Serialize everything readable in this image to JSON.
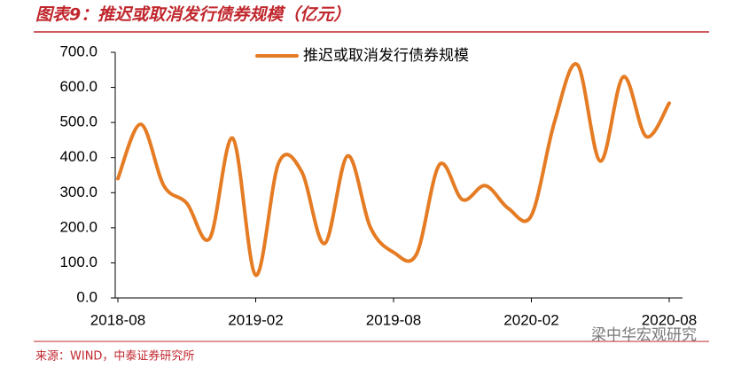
{
  "chart_data": {
    "type": "line",
    "title": "图表9：推迟或取消发行债券规模（亿元）",
    "source": "来源：WIND，中泰证券研究所",
    "watermark": "梁中华宏观研究",
    "categories": [
      "2018-08",
      null,
      null,
      null,
      null,
      null,
      "2019-02",
      null,
      null,
      null,
      null,
      null,
      "2019-08",
      null,
      null,
      null,
      null,
      null,
      "2020-02",
      null,
      null,
      null,
      null,
      null,
      "2020-08"
    ],
    "series": [
      {
        "name": "推迟或取消发行债券规模",
        "color": "#e57c24",
        "values": [
          340,
          495,
          320,
          270,
          170,
          455,
          65,
          385,
          360,
          155,
          405,
          200,
          130,
          125,
          380,
          280,
          320,
          255,
          235,
          500,
          665,
          390,
          630,
          460,
          555
        ]
      }
    ],
    "ylim": [
      0,
      700
    ],
    "yticks": [
      {
        "value": 0,
        "label": "0.0"
      },
      {
        "value": 100,
        "label": "100.0"
      },
      {
        "value": 200,
        "label": "200.0"
      },
      {
        "value": 300,
        "label": "300.0"
      },
      {
        "value": 400,
        "label": "400.0"
      },
      {
        "value": 500,
        "label": "500.0"
      },
      {
        "value": 600,
        "label": "600.0"
      },
      {
        "value": 700,
        "label": "700.0"
      }
    ],
    "legend": "top"
  }
}
